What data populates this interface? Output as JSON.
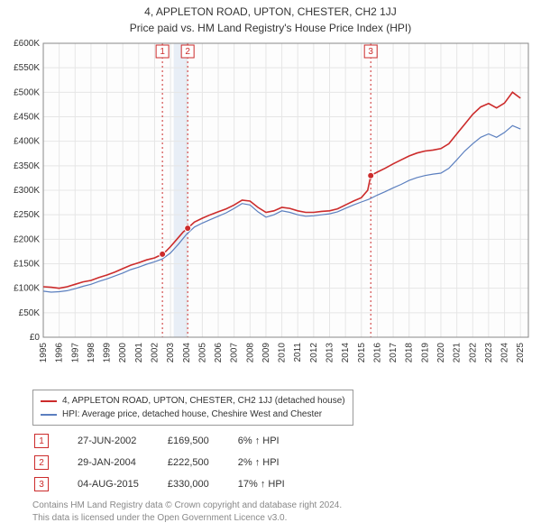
{
  "title_line1": "4, APPLETON ROAD, UPTON, CHESTER, CH2 1JJ",
  "title_line2": "Price paid vs. HM Land Registry's House Price Index (HPI)",
  "chart": {
    "type": "line",
    "background_color": "#ffffff",
    "plot_background": "#fdfdfd",
    "grid_color": "#e6e6e6",
    "axis_color": "#888888",
    "axis_label_color": "#333333",
    "highlight_band_color": "#e8eef6",
    "xmin": 1995,
    "xmax": 2025.5,
    "ymin": 0,
    "ymax": 600000,
    "ytick_step": 50000,
    "y_prefix": "£",
    "y_suffix_thousands": "K",
    "x_ticks": [
      1995,
      1996,
      1997,
      1998,
      1999,
      2000,
      2001,
      2002,
      2003,
      2004,
      2005,
      2006,
      2007,
      2008,
      2009,
      2010,
      2011,
      2012,
      2013,
      2014,
      2015,
      2016,
      2017,
      2018,
      2019,
      2020,
      2021,
      2022,
      2023,
      2024,
      2025
    ],
    "highlight_bands": [
      {
        "from": 2003.2,
        "to": 2004.1
      }
    ],
    "marker_lines": [
      {
        "x": 2002.49,
        "label": "1",
        "color": "#cc2b2b"
      },
      {
        "x": 2004.08,
        "label": "2",
        "color": "#cc2b2b"
      },
      {
        "x": 2015.59,
        "label": "3",
        "color": "#cc2b2b"
      }
    ],
    "series": [
      {
        "name": "property",
        "color": "#cc2b2b",
        "line_width": 1.6,
        "label": "4, APPLETON ROAD, UPTON, CHESTER, CH2 1JJ (detached house)",
        "points": [
          [
            1995.0,
            103000
          ],
          [
            1995.5,
            102000
          ],
          [
            1996.0,
            100000
          ],
          [
            1996.5,
            103000
          ],
          [
            1997.0,
            108000
          ],
          [
            1997.5,
            113000
          ],
          [
            1998.0,
            116000
          ],
          [
            1998.5,
            122000
          ],
          [
            1999.0,
            127000
          ],
          [
            1999.5,
            133000
          ],
          [
            2000.0,
            140000
          ],
          [
            2000.5,
            147000
          ],
          [
            2001.0,
            152000
          ],
          [
            2001.5,
            158000
          ],
          [
            2002.0,
            162000
          ],
          [
            2002.49,
            169500
          ],
          [
            2002.7,
            175000
          ],
          [
            2003.0,
            185000
          ],
          [
            2003.4,
            200000
          ],
          [
            2003.8,
            215000
          ],
          [
            2004.08,
            222500
          ],
          [
            2004.5,
            235000
          ],
          [
            2005.0,
            243000
          ],
          [
            2005.5,
            250000
          ],
          [
            2006.0,
            256000
          ],
          [
            2006.5,
            262000
          ],
          [
            2007.0,
            270000
          ],
          [
            2007.5,
            280000
          ],
          [
            2008.0,
            278000
          ],
          [
            2008.5,
            265000
          ],
          [
            2009.0,
            255000
          ],
          [
            2009.5,
            258000
          ],
          [
            2010.0,
            265000
          ],
          [
            2010.5,
            263000
          ],
          [
            2011.0,
            258000
          ],
          [
            2011.5,
            255000
          ],
          [
            2012.0,
            255000
          ],
          [
            2012.5,
            257000
          ],
          [
            2013.0,
            258000
          ],
          [
            2013.5,
            262000
          ],
          [
            2014.0,
            270000
          ],
          [
            2014.5,
            278000
          ],
          [
            2015.0,
            285000
          ],
          [
            2015.4,
            300000
          ],
          [
            2015.59,
            330000
          ],
          [
            2016.0,
            337000
          ],
          [
            2016.5,
            345000
          ],
          [
            2017.0,
            354000
          ],
          [
            2017.5,
            362000
          ],
          [
            2018.0,
            370000
          ],
          [
            2018.5,
            376000
          ],
          [
            2019.0,
            380000
          ],
          [
            2019.5,
            382000
          ],
          [
            2020.0,
            385000
          ],
          [
            2020.5,
            395000
          ],
          [
            2021.0,
            415000
          ],
          [
            2021.5,
            435000
          ],
          [
            2022.0,
            455000
          ],
          [
            2022.5,
            470000
          ],
          [
            2023.0,
            477000
          ],
          [
            2023.5,
            468000
          ],
          [
            2024.0,
            478000
          ],
          [
            2024.5,
            500000
          ],
          [
            2025.0,
            488000
          ]
        ],
        "sale_dots": [
          {
            "x": 2002.49,
            "y": 169500
          },
          {
            "x": 2004.08,
            "y": 222500
          },
          {
            "x": 2015.59,
            "y": 330000
          }
        ]
      },
      {
        "name": "hpi",
        "color": "#5b7fbf",
        "line_width": 1.2,
        "label": "HPI: Average price, detached house, Cheshire West and Chester",
        "points": [
          [
            1995.0,
            94000
          ],
          [
            1995.5,
            92000
          ],
          [
            1996.0,
            93000
          ],
          [
            1996.5,
            95000
          ],
          [
            1997.0,
            99000
          ],
          [
            1997.5,
            104000
          ],
          [
            1998.0,
            108000
          ],
          [
            1998.5,
            114000
          ],
          [
            1999.0,
            119000
          ],
          [
            1999.5,
            125000
          ],
          [
            2000.0,
            131000
          ],
          [
            2000.5,
            138000
          ],
          [
            2001.0,
            143000
          ],
          [
            2001.5,
            149000
          ],
          [
            2002.0,
            154000
          ],
          [
            2002.5,
            160000
          ],
          [
            2003.0,
            172000
          ],
          [
            2003.5,
            190000
          ],
          [
            2004.0,
            210000
          ],
          [
            2004.5,
            225000
          ],
          [
            2005.0,
            233000
          ],
          [
            2005.5,
            240000
          ],
          [
            2006.0,
            247000
          ],
          [
            2006.5,
            254000
          ],
          [
            2007.0,
            263000
          ],
          [
            2007.5,
            273000
          ],
          [
            2008.0,
            270000
          ],
          [
            2008.5,
            256000
          ],
          [
            2009.0,
            245000
          ],
          [
            2009.5,
            250000
          ],
          [
            2010.0,
            258000
          ],
          [
            2010.5,
            255000
          ],
          [
            2011.0,
            250000
          ],
          [
            2011.5,
            247000
          ],
          [
            2012.0,
            248000
          ],
          [
            2012.5,
            250000
          ],
          [
            2013.0,
            252000
          ],
          [
            2013.5,
            256000
          ],
          [
            2014.0,
            263000
          ],
          [
            2014.5,
            270000
          ],
          [
            2015.0,
            276000
          ],
          [
            2015.5,
            282000
          ],
          [
            2016.0,
            290000
          ],
          [
            2016.5,
            297000
          ],
          [
            2017.0,
            305000
          ],
          [
            2017.5,
            312000
          ],
          [
            2018.0,
            320000
          ],
          [
            2018.5,
            326000
          ],
          [
            2019.0,
            330000
          ],
          [
            2019.5,
            333000
          ],
          [
            2020.0,
            335000
          ],
          [
            2020.5,
            345000
          ],
          [
            2021.0,
            362000
          ],
          [
            2021.5,
            380000
          ],
          [
            2022.0,
            395000
          ],
          [
            2022.5,
            408000
          ],
          [
            2023.0,
            415000
          ],
          [
            2023.5,
            408000
          ],
          [
            2024.0,
            418000
          ],
          [
            2024.5,
            432000
          ],
          [
            2025.0,
            425000
          ]
        ]
      }
    ]
  },
  "legend": {
    "items": [
      {
        "color": "#cc2b2b",
        "label": "4, APPLETON ROAD, UPTON, CHESTER, CH2 1JJ (detached house)"
      },
      {
        "color": "#5b7fbf",
        "label": "HPI: Average price, detached house, Cheshire West and Chester"
      }
    ]
  },
  "markers_table": [
    {
      "num": "1",
      "date": "27-JUN-2002",
      "price": "£169,500",
      "pct": "6% ↑ HPI",
      "color": "#cc2b2b"
    },
    {
      "num": "2",
      "date": "29-JAN-2004",
      "price": "£222,500",
      "pct": "2% ↑ HPI",
      "color": "#cc2b2b"
    },
    {
      "num": "3",
      "date": "04-AUG-2015",
      "price": "£330,000",
      "pct": "17% ↑ HPI",
      "color": "#cc2b2b"
    }
  ],
  "footer_line1": "Contains HM Land Registry data © Crown copyright and database right 2024.",
  "footer_line2": "This data is licensed under the Open Government Licence v3.0."
}
